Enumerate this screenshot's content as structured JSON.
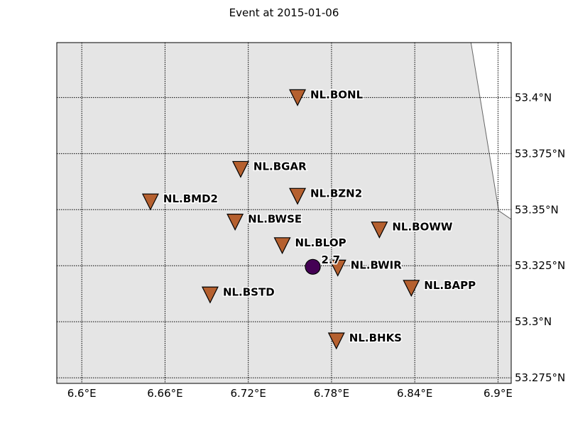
{
  "title": "Event at 2015-01-06",
  "colors": {
    "land": "#e5e5e5",
    "water": "#ffffff",
    "station": "#b5602f",
    "event": "#440154",
    "coastline": "#666666",
    "grid": "#000000"
  },
  "map": {
    "lon_range": [
      6.582,
      6.9095
    ],
    "lat_range": [
      53.2725,
      53.4245
    ],
    "lon_ticks": [
      {
        "value": 6.6,
        "label": "6.6°E"
      },
      {
        "value": 6.66,
        "label": "6.66°E"
      },
      {
        "value": 6.72,
        "label": "6.72°E"
      },
      {
        "value": 6.78,
        "label": "6.78°E"
      },
      {
        "value": 6.84,
        "label": "6.84°E"
      },
      {
        "value": 6.9,
        "label": "6.9°E"
      }
    ],
    "lat_ticks": [
      {
        "value": 53.4,
        "label": "53.4°N"
      },
      {
        "value": 53.375,
        "label": "53.375°N"
      },
      {
        "value": 53.35,
        "label": "53.35°N"
      },
      {
        "value": 53.325,
        "label": "53.325°N"
      },
      {
        "value": 53.3,
        "label": "53.3°N"
      },
      {
        "value": 53.275,
        "label": "53.275°N"
      }
    ],
    "grid": true,
    "coastline": [
      [
        6.8805,
        53.4245
      ],
      [
        6.9005,
        53.3495
      ],
      [
        6.9095,
        53.3457
      ]
    ]
  },
  "stations": [
    {
      "name": "NL.BONL",
      "lon": 6.7555,
      "lat": 53.4
    },
    {
      "name": "NL.BGAR",
      "lon": 6.7145,
      "lat": 53.368
    },
    {
      "name": "NL.BZN2",
      "lon": 6.7555,
      "lat": 53.356
    },
    {
      "name": "NL.BMD2",
      "lon": 6.6495,
      "lat": 53.3535
    },
    {
      "name": "NL.BWSE",
      "lon": 6.7105,
      "lat": 53.3445
    },
    {
      "name": "NL.BOWW",
      "lon": 6.8145,
      "lat": 53.341
    },
    {
      "name": "NL.BLOP",
      "lon": 6.7445,
      "lat": 53.334
    },
    {
      "name": "NL.BWIR",
      "lon": 6.7845,
      "lat": 53.324
    },
    {
      "name": "NL.BAPP",
      "lon": 6.8375,
      "lat": 53.315
    },
    {
      "name": "NL.BSTD",
      "lon": 6.6925,
      "lat": 53.312
    },
    {
      "name": "NL.BHKS",
      "lon": 6.7835,
      "lat": 53.2915
    }
  ],
  "event": {
    "lon": 6.7665,
    "lat": 53.3245,
    "magnitude_label": "2.7"
  }
}
